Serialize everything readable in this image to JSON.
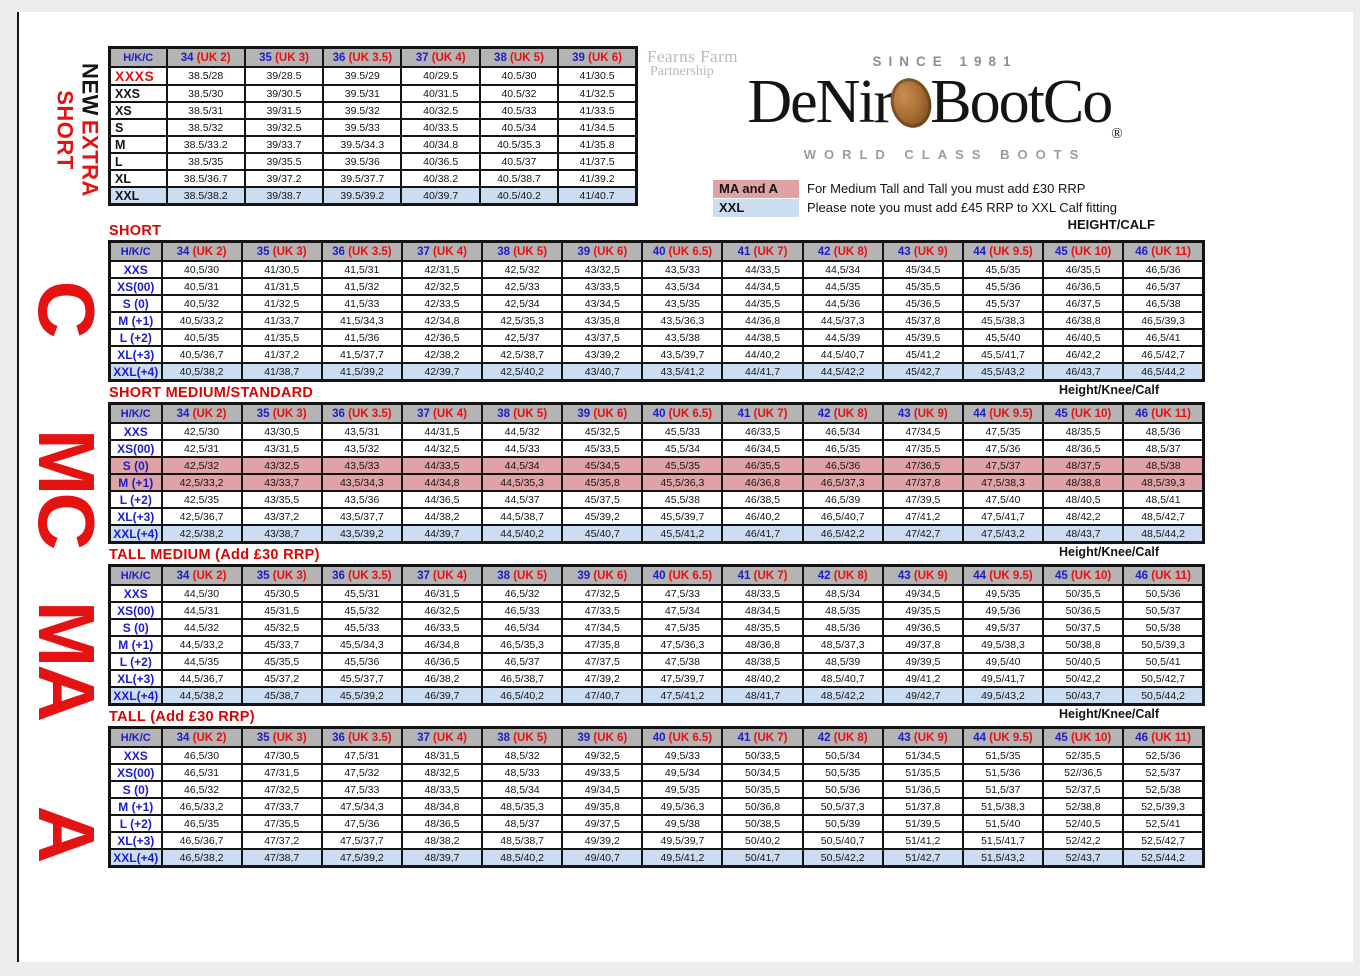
{
  "colors": {
    "margin_bg": "#ececec",
    "page_bg": "#ffffff",
    "header_gray": "#b4b4b4",
    "row_pink": "#dfa3a6",
    "row_blue": "#cdddf1",
    "title_red": "#d60606",
    "accent_red": "#e51212",
    "label_blue": "#1c1cc9",
    "coin_copper": "#a96f33"
  },
  "labels": {
    "corner": "H/K/C",
    "height_calf": "HEIGHT/CALF",
    "side_new": "NEW",
    "side_extra": "EXTRA",
    "side_short": "SHORT"
  },
  "logo": {
    "partner_line1": "Fearns Farm",
    "partner_line2": "Partnership",
    "since": "SINCE 1981",
    "brand_left": "DeNir",
    "brand_right": "BootCo",
    "registered": "®",
    "tagline": "WORLD CLASS BOOTS"
  },
  "notes": {
    "rows": [
      {
        "key": "MA and A",
        "key_style": "pink",
        "text": "For Medium Tall and Tall you must add £30 RRP"
      },
      {
        "key": "XXL",
        "key_style": "blue",
        "text": "Please note you must add £45 RRP to XXL Calf fitting"
      }
    ]
  },
  "extra_short": {
    "columns": [
      {
        "size": "34",
        "uk": "(UK 2)"
      },
      {
        "size": "35",
        "uk": "(UK 3)"
      },
      {
        "size": "36",
        "uk": "(UK 3.5)"
      },
      {
        "size": "37",
        "uk": "(UK 4)"
      },
      {
        "size": "38",
        "uk": "(UK 5)"
      },
      {
        "size": "39",
        "uk": "(UK 6)"
      }
    ],
    "rows": [
      {
        "label": "XXXS",
        "style": "red",
        "values": [
          "38.5/28",
          "39/28.5",
          "39.5/29",
          "40/29.5",
          "40.5/30",
          "41/30.5"
        ]
      },
      {
        "label": "XXS",
        "style": "plain",
        "values": [
          "38.5/30",
          "39/30.5",
          "39.5/31",
          "40/31.5",
          "40.5/32",
          "41/32.5"
        ]
      },
      {
        "label": "XS",
        "style": "plain",
        "values": [
          "38.5/31",
          "39/31.5",
          "39.5/32",
          "40/32.5",
          "40.5/33",
          "41/33.5"
        ]
      },
      {
        "label": "S",
        "style": "plain",
        "values": [
          "38.5/32",
          "39/32.5",
          "39.5/33",
          "40/33.5",
          "40.5/34",
          "41/34.5"
        ]
      },
      {
        "label": "M",
        "style": "plain",
        "values": [
          "38.5/33.2",
          "39/33.7",
          "39.5/34.3",
          "40/34.8",
          "40.5/35.3",
          "41/35.8"
        ]
      },
      {
        "label": "L",
        "style": "plain",
        "values": [
          "38.5/35",
          "39/35.5",
          "39.5/36",
          "40/36.5",
          "40.5/37",
          "41/37.5"
        ]
      },
      {
        "label": "XL",
        "style": "plain",
        "values": [
          "38.5/36.7",
          "39/37.2",
          "39.5/37.7",
          "40/38.2",
          "40.5/38.7",
          "41/39.2"
        ]
      },
      {
        "label": "XXL",
        "style": "blue",
        "values": [
          "38.5/38.2",
          "39/38.7",
          "39.5/39.2",
          "40/39.7",
          "40.5/40.2",
          "41/40.7"
        ]
      }
    ]
  },
  "size_columns": [
    {
      "size": "34",
      "uk": "(UK 2)"
    },
    {
      "size": "35",
      "uk": "(UK 3)"
    },
    {
      "size": "36",
      "uk": "(UK 3.5)"
    },
    {
      "size": "37",
      "uk": "(UK 4)"
    },
    {
      "size": "38",
      "uk": "(UK 5)"
    },
    {
      "size": "39",
      "uk": "(UK 6)"
    },
    {
      "size": "40",
      "uk": "(UK 6.5)"
    },
    {
      "size": "41",
      "uk": "(UK 7)"
    },
    {
      "size": "42",
      "uk": "(UK 8)"
    },
    {
      "size": "43",
      "uk": "(UK 9)"
    },
    {
      "size": "44",
      "uk": "(UK 9.5)"
    },
    {
      "size": "45",
      "uk": "(UK 10)"
    },
    {
      "size": "46",
      "uk": "(UK 11)"
    }
  ],
  "sections": [
    {
      "side_letter": "C",
      "title": "SHORT",
      "footer": "Height/Knee/Calf",
      "rows": [
        {
          "label": "XXS",
          "style": "plain",
          "values": [
            "40,5/30",
            "41/30,5",
            "41,5/31",
            "42/31,5",
            "42,5/32",
            "43/32,5",
            "43,5/33",
            "44/33,5",
            "44,5/34",
            "45/34,5",
            "45,5/35",
            "46/35,5",
            "46,5/36"
          ]
        },
        {
          "label": "XS(00)",
          "style": "plain",
          "values": [
            "40,5/31",
            "41/31,5",
            "41,5/32",
            "42/32,5",
            "42,5/33",
            "43/33,5",
            "43,5/34",
            "44/34,5",
            "44,5/35",
            "45/35,5",
            "45,5/36",
            "46/36,5",
            "46,5/37"
          ]
        },
        {
          "label": "S (0)",
          "style": "plain",
          "values": [
            "40,5/32",
            "41/32,5",
            "41,5/33",
            "42/33,5",
            "42,5/34",
            "43/34,5",
            "43,5/35",
            "44/35,5",
            "44,5/36",
            "45/36,5",
            "45,5/37",
            "46/37,5",
            "46,5/38"
          ]
        },
        {
          "label": "M (+1)",
          "style": "plain",
          "values": [
            "40,5/33,2",
            "41/33,7",
            "41,5/34,3",
            "42/34,8",
            "42,5/35,3",
            "43/35,8",
            "43,5/36,3",
            "44/36,8",
            "44,5/37,3",
            "45/37,8",
            "45,5/38,3",
            "46/38,8",
            "46,5/39,3"
          ]
        },
        {
          "label": "L (+2)",
          "style": "plain",
          "values": [
            "40,5/35",
            "41/35,5",
            "41,5/36",
            "42/36,5",
            "42,5/37",
            "43/37,5",
            "43,5/38",
            "44/38,5",
            "44,5/39",
            "45/39,5",
            "45,5/40",
            "46/40,5",
            "46,5/41"
          ]
        },
        {
          "label": "XL(+3)",
          "style": "plain",
          "values": [
            "40,5/36,7",
            "41/37,2",
            "41,5/37,7",
            "42/38,2",
            "42,5/38,7",
            "43/39,2",
            "43,5/39,7",
            "44/40,2",
            "44,5/40,7",
            "45/41,2",
            "45,5/41,7",
            "46/42,2",
            "46,5/42,7"
          ]
        },
        {
          "label": "XXL(+4)",
          "style": "blue",
          "values": [
            "40,5/38,2",
            "41/38,7",
            "41,5/39,2",
            "42/39,7",
            "42,5/40,2",
            "43/40,7",
            "43,5/41,2",
            "44/41,7",
            "44,5/42,2",
            "45/42,7",
            "45,5/43,2",
            "46/43,7",
            "46,5/44,2"
          ]
        }
      ]
    },
    {
      "side_letter": "MC",
      "title": "SHORT MEDIUM/STANDARD",
      "footer": "Height/Knee/Calf",
      "rows": [
        {
          "label": "XXS",
          "style": "plain",
          "values": [
            "42,5/30",
            "43/30,5",
            "43,5/31",
            "44/31,5",
            "44,5/32",
            "45/32,5",
            "45,5/33",
            "46/33,5",
            "46,5/34",
            "47/34,5",
            "47,5/35",
            "48/35,5",
            "48,5/36"
          ]
        },
        {
          "label": "XS(00)",
          "style": "plain",
          "values": [
            "42,5/31",
            "43/31,5",
            "43,5/32",
            "44/32,5",
            "44,5/33",
            "45/33,5",
            "45,5/34",
            "46/34,5",
            "46,5/35",
            "47/35,5",
            "47,5/36",
            "48/36,5",
            "48,5/37"
          ]
        },
        {
          "label": "S (0)",
          "style": "pink",
          "values": [
            "42,5/32",
            "43/32,5",
            "43,5/33",
            "44/33,5",
            "44,5/34",
            "45/34,5",
            "45,5/35",
            "46/35,5",
            "46,5/36",
            "47/36,5",
            "47,5/37",
            "48/37,5",
            "48,5/38"
          ]
        },
        {
          "label": "M (+1)",
          "style": "pink",
          "values": [
            "42,5/33,2",
            "43/33,7",
            "43,5/34,3",
            "44/34,8",
            "44,5/35,3",
            "45/35,8",
            "45,5/36,3",
            "46/36,8",
            "46,5/37,3",
            "47/37,8",
            "47,5/38,3",
            "48/38,8",
            "48,5/39,3"
          ]
        },
        {
          "label": "L (+2)",
          "style": "plain",
          "values": [
            "42,5/35",
            "43/35,5",
            "43,5/36",
            "44/36,5",
            "44,5/37",
            "45/37,5",
            "45,5/38",
            "46/38,5",
            "46,5/39",
            "47/39,5",
            "47,5/40",
            "48/40,5",
            "48,5/41"
          ]
        },
        {
          "label": "XL(+3)",
          "style": "plain",
          "values": [
            "42,5/36,7",
            "43/37,2",
            "43,5/37,7",
            "44/38,2",
            "44,5/38,7",
            "45/39,2",
            "45,5/39,7",
            "46/40,2",
            "46,5/40,7",
            "47/41,2",
            "47,5/41,7",
            "48/42,2",
            "48,5/42,7"
          ]
        },
        {
          "label": "XXL(+4)",
          "style": "blue",
          "values": [
            "42,5/38,2",
            "43/38,7",
            "43,5/39,2",
            "44/39,7",
            "44,5/40,2",
            "45/40,7",
            "45,5/41,2",
            "46/41,7",
            "46,5/42,2",
            "47/42,7",
            "47,5/43,2",
            "48/43,7",
            "48,5/44,2"
          ]
        }
      ]
    },
    {
      "side_letter": "MA",
      "title": "TALL MEDIUM (Add £30 RRP)",
      "footer": "Height/Knee/Calf",
      "rows": [
        {
          "label": "XXS",
          "style": "plain",
          "values": [
            "44,5/30",
            "45/30,5",
            "45,5/31",
            "46/31,5",
            "46,5/32",
            "47/32,5",
            "47,5/33",
            "48/33,5",
            "48,5/34",
            "49/34,5",
            "49,5/35",
            "50/35,5",
            "50,5/36"
          ]
        },
        {
          "label": "XS(00)",
          "style": "plain",
          "values": [
            "44,5/31",
            "45/31,5",
            "45,5/32",
            "46/32,5",
            "46,5/33",
            "47/33,5",
            "47,5/34",
            "48/34,5",
            "48,5/35",
            "49/35,5",
            "49,5/36",
            "50/36,5",
            "50,5/37"
          ]
        },
        {
          "label": "S (0)",
          "style": "plain",
          "values": [
            "44,5/32",
            "45/32,5",
            "45,5/33",
            "46/33,5",
            "46,5/34",
            "47/34,5",
            "47,5/35",
            "48/35,5",
            "48,5/36",
            "49/36,5",
            "49,5/37",
            "50/37,5",
            "50,5/38"
          ]
        },
        {
          "label": "M (+1)",
          "style": "plain",
          "values": [
            "44,5/33,2",
            "45/33,7",
            "45,5/34,3",
            "46/34,8",
            "46,5/35,3",
            "47/35,8",
            "47,5/36,3",
            "48/36,8",
            "48,5/37,3",
            "49/37,8",
            "49,5/38,3",
            "50/38,8",
            "50,5/39,3"
          ]
        },
        {
          "label": "L (+2)",
          "style": "plain",
          "values": [
            "44,5/35",
            "45/35,5",
            "45,5/36",
            "46/36,5",
            "46,5/37",
            "47/37,5",
            "47,5/38",
            "48/38,5",
            "48,5/39",
            "49/39,5",
            "49,5/40",
            "50/40,5",
            "50,5/41"
          ]
        },
        {
          "label": "XL(+3)",
          "style": "plain",
          "values": [
            "44,5/36,7",
            "45/37,2",
            "45,5/37,7",
            "46/38,2",
            "46,5/38,7",
            "47/39,2",
            "47,5/39,7",
            "48/40,2",
            "48,5/40,7",
            "49/41,2",
            "49,5/41,7",
            "50/42,2",
            "50,5/42,7"
          ]
        },
        {
          "label": "XXL(+4)",
          "style": "blue",
          "values": [
            "44,5/38,2",
            "45/38,7",
            "45,5/39,2",
            "46/39,7",
            "46,5/40,2",
            "47/40,7",
            "47,5/41,2",
            "48/41,7",
            "48,5/42,2",
            "49/42,7",
            "49,5/43,2",
            "50/43,7",
            "50,5/44,2"
          ]
        }
      ]
    },
    {
      "side_letter": "A",
      "title": "TALL (Add £30 RRP)",
      "footer": "",
      "rows": [
        {
          "label": "XXS",
          "style": "plain",
          "values": [
            "46,5/30",
            "47/30,5",
            "47,5/31",
            "48/31,5",
            "48,5/32",
            "49/32,5",
            "49,5/33",
            "50/33,5",
            "50,5/34",
            "51/34,5",
            "51,5/35",
            "52/35,5",
            "52,5/36"
          ]
        },
        {
          "label": "XS(00)",
          "style": "plain",
          "values": [
            "46,5/31",
            "47/31,5",
            "47,5/32",
            "48/32,5",
            "48,5/33",
            "49/33,5",
            "49,5/34",
            "50/34,5",
            "50,5/35",
            "51/35,5",
            "51,5/36",
            "52//36,5",
            "52,5/37"
          ]
        },
        {
          "label": "S (0)",
          "style": "plain",
          "values": [
            "46,5/32",
            "47/32,5",
            "47,5/33",
            "48/33,5",
            "48,5/34",
            "49/34,5",
            "49,5/35",
            "50/35,5",
            "50,5/36",
            "51/36,5",
            "51,5/37",
            "52/37,5",
            "52,5/38"
          ]
        },
        {
          "label": "M (+1)",
          "style": "plain",
          "values": [
            "46,5/33,2",
            "47/33,7",
            "47,5/34,3",
            "48/34,8",
            "48,5/35,3",
            "49/35,8",
            "49,5/36,3",
            "50/36,8",
            "50,5/37,3",
            "51/37,8",
            "51,5/38,3",
            "52/38,8",
            "52,5/39,3"
          ]
        },
        {
          "label": "L (+2)",
          "style": "plain",
          "values": [
            "46,5/35",
            "47/35,5",
            "47,5/36",
            "48/36,5",
            "48,5/37",
            "49/37,5",
            "49,5/38",
            "50/38,5",
            "50,5/39",
            "51/39,5",
            "51,5/40",
            "52/40,5",
            "52,5/41"
          ]
        },
        {
          "label": "XL(+3)",
          "style": "plain",
          "values": [
            "46,5/36,7",
            "47/37,2",
            "47,5/37,7",
            "48/38,2",
            "48,5/38,7",
            "49/39,2",
            "49,5/39,7",
            "50/40,2",
            "50,5/40,7",
            "51/41,2",
            "51,5/41,7",
            "52/42,2",
            "52,5/42,7"
          ]
        },
        {
          "label": "XXL(+4)",
          "style": "blue",
          "values": [
            "46,5/38,2",
            "47/38,7",
            "47,5/39,2",
            "48/39,7",
            "48,5/40,2",
            "49/40,7",
            "49,5/41,2",
            "50/41,7",
            "50,5/42,2",
            "51/42,7",
            "51,5/43,2",
            "52/43,7",
            "52,5/44,2"
          ]
        }
      ]
    }
  ]
}
